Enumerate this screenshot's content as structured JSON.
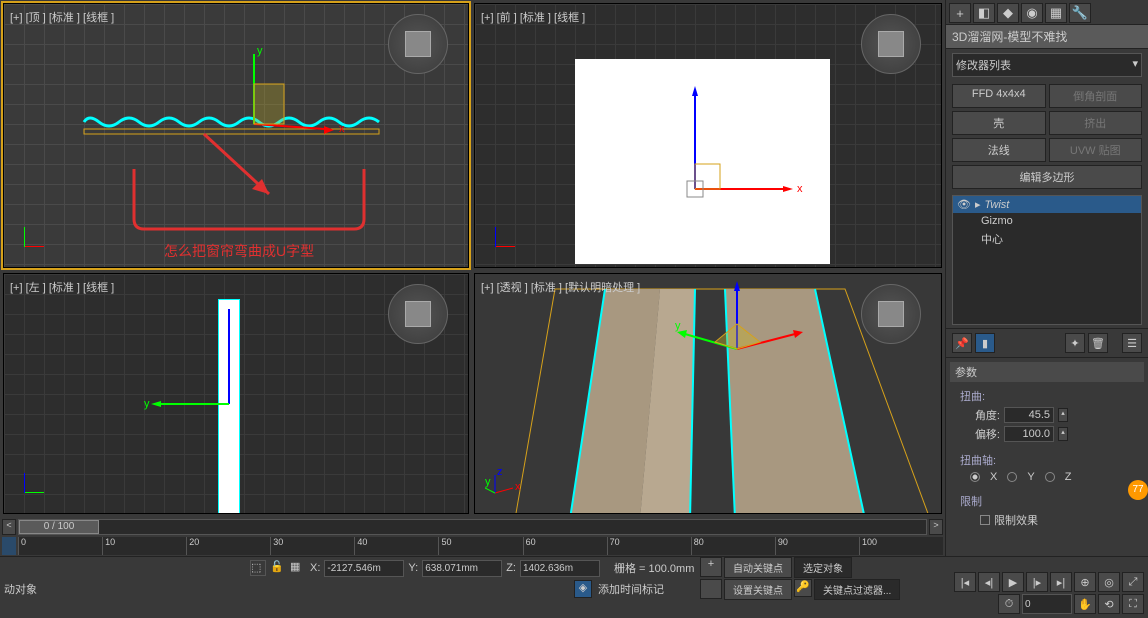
{
  "viewports": {
    "top": {
      "label": "[+] [顶 ] [标准 ] [线框 ]"
    },
    "front": {
      "label": "[+] [前 ] [标准 ] [线框 ]"
    },
    "left": {
      "label": "[+] [左 ] [标准 ] [线框 ]"
    },
    "persp": {
      "label": "[+] [透视 ] [标准 ] [默认明暗处理 ]"
    },
    "annotation_text": "怎么把窗帘弯曲成U字型",
    "annotation_color": "#e03030",
    "curtain_color": "#b8a890",
    "selection_color": "#00ffff",
    "wireframe_color": "#d6a11a"
  },
  "panel": {
    "title": "3D溜溜网-模型不难找",
    "dropdown": "修改器列表",
    "buttons": {
      "ffd": "FFD 4x4x4",
      "chamfer": "倒角剖面",
      "shell": "壳",
      "extrude": "挤出",
      "normal": "法线",
      "uvw": "UVW 贴图",
      "editpoly": "编辑多边形"
    },
    "stack": {
      "item0": "Twist",
      "item1": "Gizmo",
      "item2": "中心"
    },
    "params": {
      "header": "参数",
      "twist_label": "扭曲:",
      "angle_label": "角度:",
      "angle_value": "45.5",
      "bias_label": "偏移:",
      "bias_value": "100.0",
      "axis_label": "扭曲轴:",
      "axis_x": "X",
      "axis_y": "Y",
      "axis_z": "Z",
      "limit_label": "限制",
      "limit_effect": "限制效果"
    }
  },
  "timeline": {
    "slider": "0 / 100",
    "ticks": [
      "0",
      "10",
      "20",
      "30",
      "40",
      "50",
      "60",
      "70",
      "80",
      "90",
      "100"
    ]
  },
  "coords": {
    "x_label": "X:",
    "x": "-2127.546m",
    "y_label": "Y:",
    "y": "638.071mm",
    "z_label": "Z:",
    "z": "1402.636m",
    "grid": "栅格 = 100.0mm"
  },
  "status": {
    "left": "动对象",
    "add_time": "添加时间标记",
    "autokey": "自动关键点",
    "selected": "选定对象",
    "setkey": "设置关键点",
    "keyfilter": "关键点过滤器..."
  },
  "badge": "77"
}
